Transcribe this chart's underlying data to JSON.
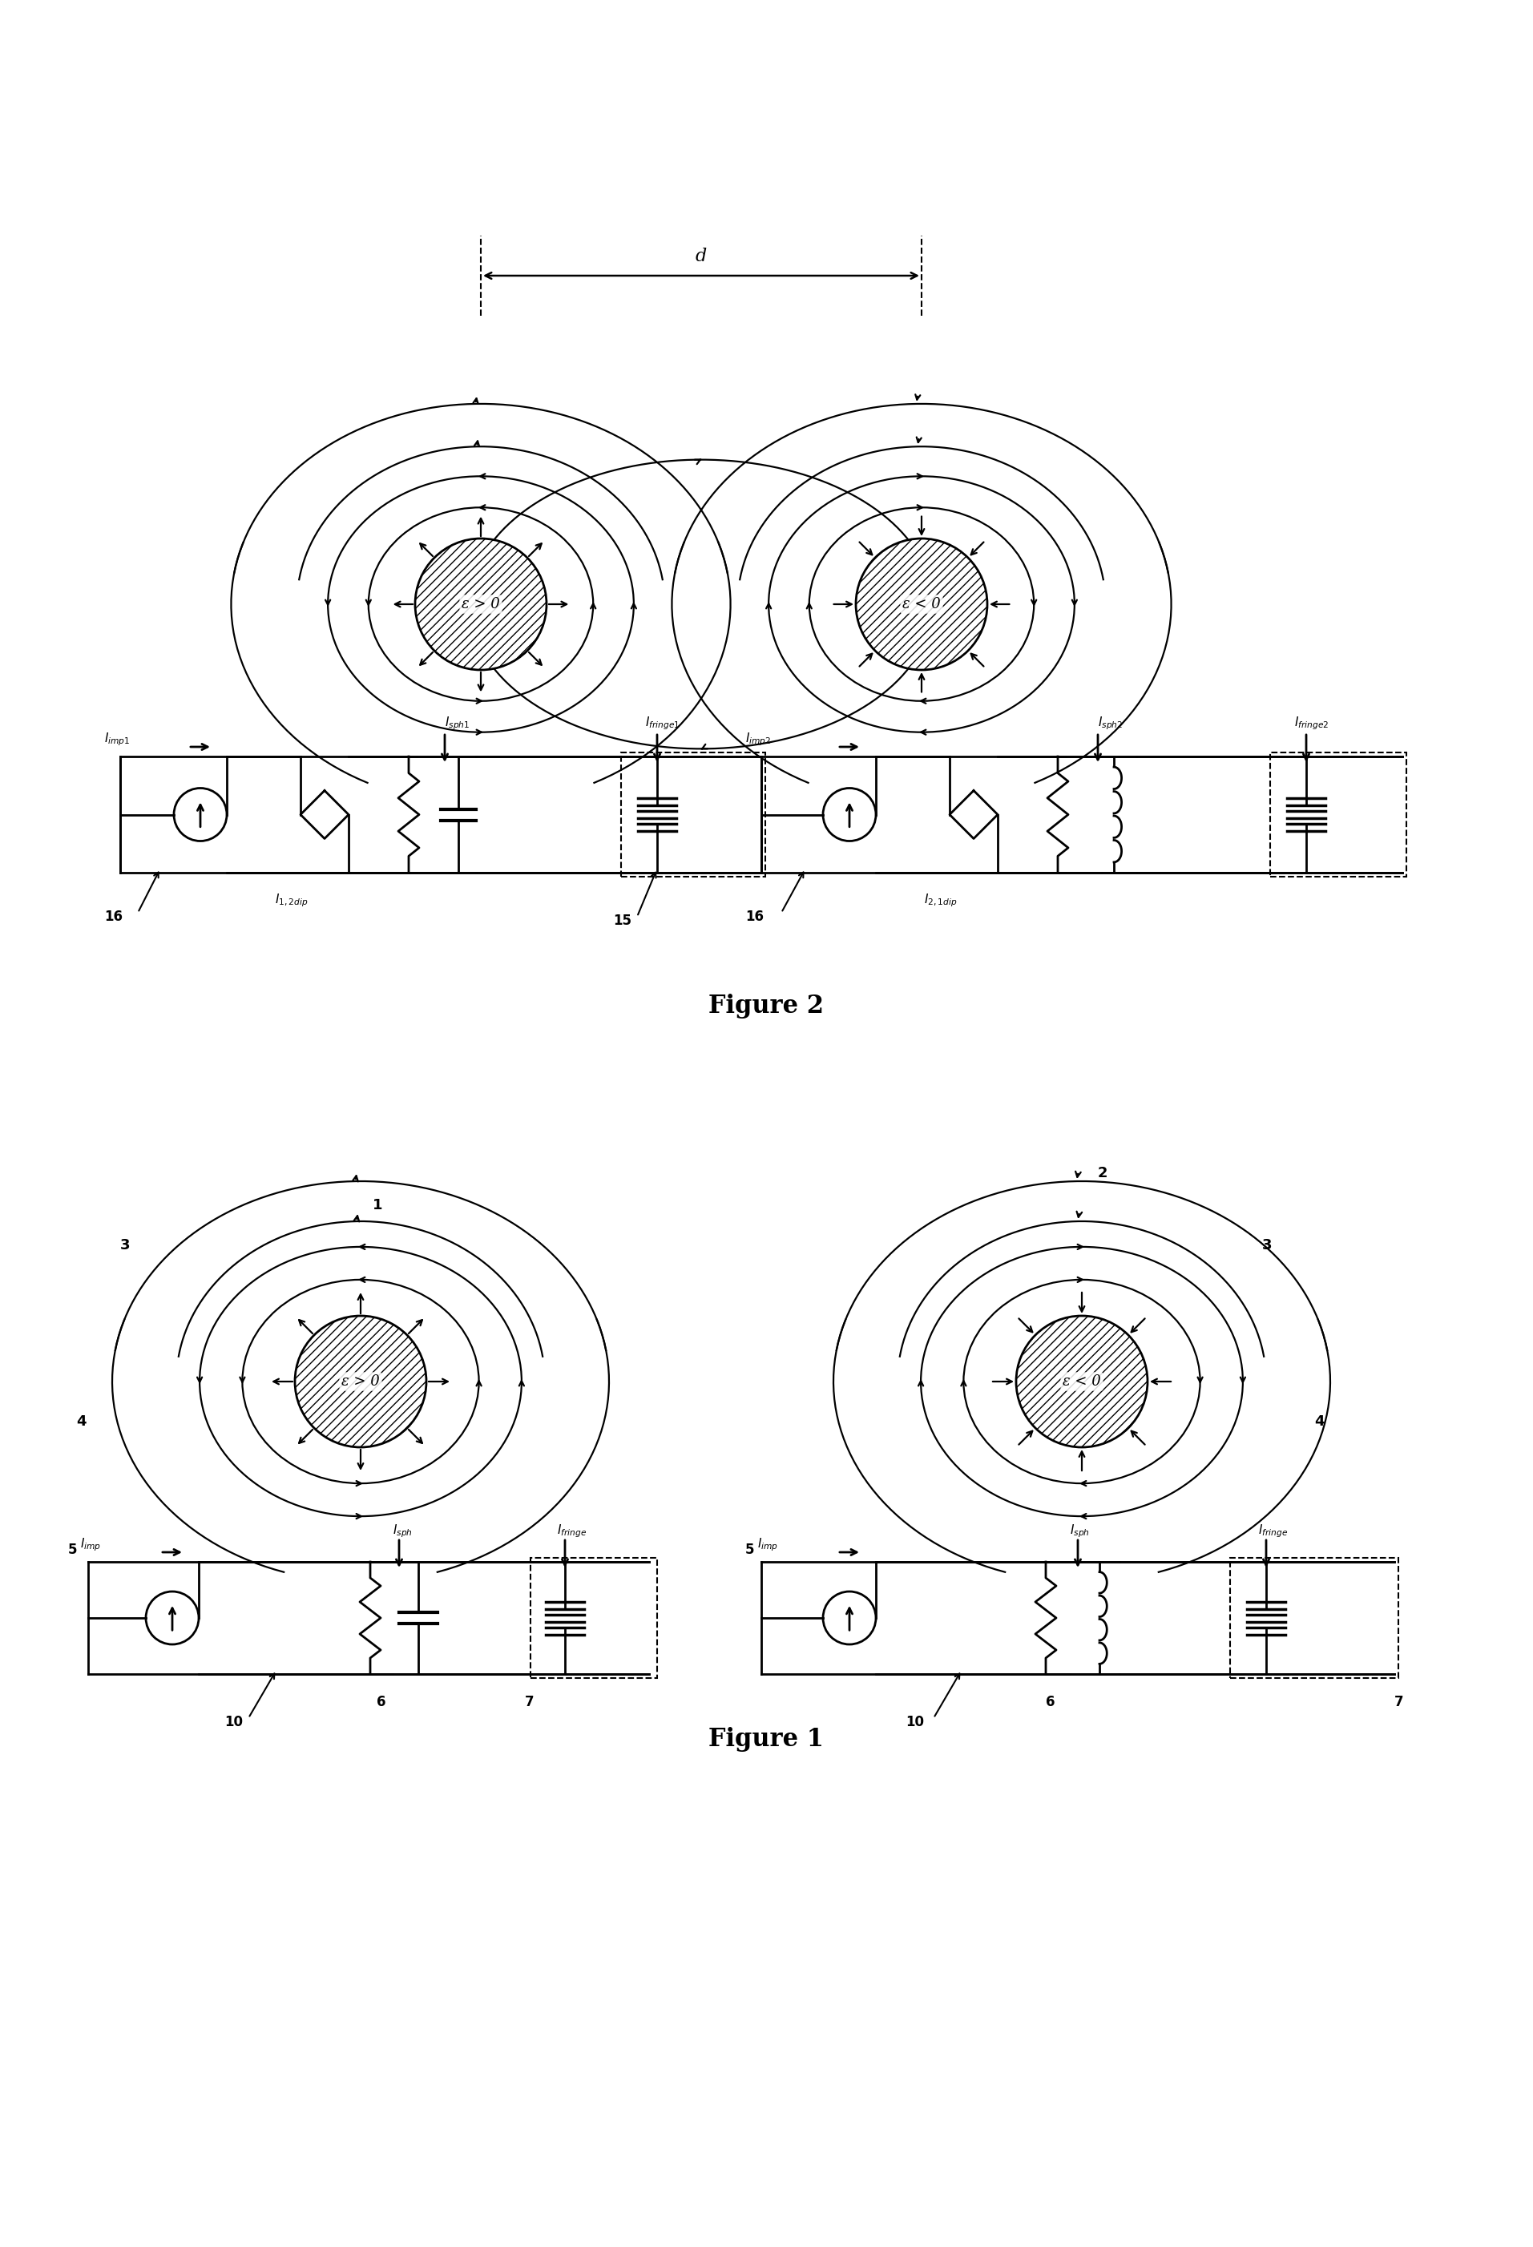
{
  "fig_width": 19.13,
  "fig_height": 28.04,
  "bg_color": "#ffffff",
  "fig1_title": "Figure 1",
  "fig2_title": "Figure 2",
  "sphere1_label": "ε > 0",
  "sphere2_label": "ε < 0"
}
